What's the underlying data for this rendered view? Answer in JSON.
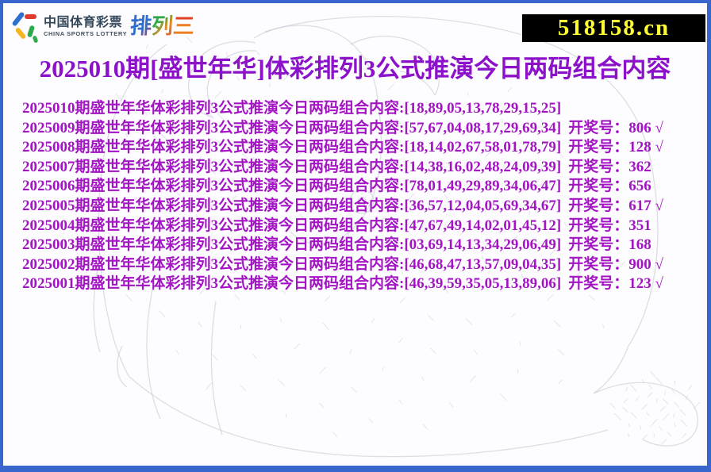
{
  "header": {
    "logo": {
      "brand_cn": "中国体育彩票",
      "brand_en": "CHINA SPORTS LOTTERY",
      "game_chars": [
        "排",
        "列",
        "三"
      ]
    },
    "site_badge": "518158.cn"
  },
  "title": "2025010期[盛世年华]体彩排列3公式推演今日两码组合内容",
  "rows": [
    {
      "content": "2025010期盛世年华体彩排列3公式推演今日两码组合内容:[18,89,05,13,78,29,15,25]",
      "result": ""
    },
    {
      "content": "2025009期盛世年华体彩排列3公式推演今日两码组合内容:[57,67,04,08,17,29,69,34]",
      "result": "开奖号：806 √"
    },
    {
      "content": "2025008期盛世年华体彩排列3公式推演今日两码组合内容:[18,14,02,67,58,01,78,79]",
      "result": "开奖号：128 √"
    },
    {
      "content": "2025007期盛世年华体彩排列3公式推演今日两码组合内容:[14,38,16,02,48,24,09,39]",
      "result": "开奖号：362"
    },
    {
      "content": "2025006期盛世年华体彩排列3公式推演今日两码组合内容:[78,01,49,29,89,34,06,47]",
      "result": "开奖号：656"
    },
    {
      "content": "2025005期盛世年华体彩排列3公式推演今日两码组合内容:[36,57,12,04,05,69,34,67]",
      "result": "开奖号：617 √"
    },
    {
      "content": "2025004期盛世年华体彩排列3公式推演今日两码组合内容:[47,67,49,14,02,01,45,12]",
      "result": "开奖号：351"
    },
    {
      "content": "2025003期盛世年华体彩排列3公式推演今日两码组合内容:[03,69,14,13,34,29,06,49]",
      "result": "开奖号：168"
    },
    {
      "content": "2025002期盛世年华体彩排列3公式推演今日两码组合内容:[46,68,47,13,57,09,04,35]",
      "result": "开奖号：900 √"
    },
    {
      "content": "2025001期盛世年华体彩排列3公式推演今日两码组合内容:[46,39,59,35,05,13,89,06]",
      "result": "开奖号：123 √"
    }
  ],
  "colors": {
    "border_frame": "#3866cc",
    "page_bg": "#fdfdff",
    "title_text": "#8c12c9",
    "row_text": "#a315c2",
    "badge_bg": "#000000",
    "badge_text": "#ffff33"
  }
}
